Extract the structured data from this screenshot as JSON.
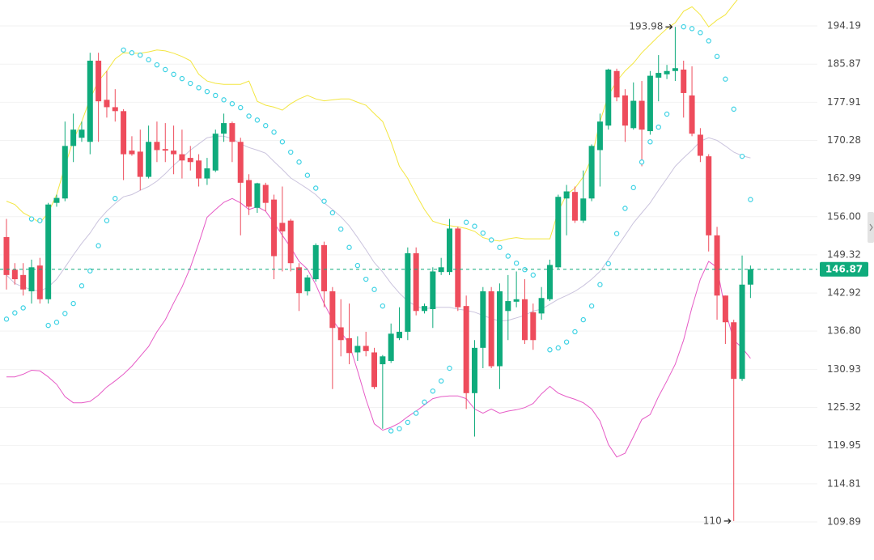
{
  "chart_data": {
    "type": "candlestick",
    "log_scale": true,
    "grid": true,
    "up_color": "#0fab7c",
    "down_color": "#ee4c5c",
    "ylim": [
      105.88,
      200.06
    ],
    "yticks": [
      109.89,
      114.81,
      119.95,
      125.32,
      130.93,
      {
        "value": 136.8,
        "label": "136.80"
      },
      142.92,
      149.32,
      {
        "value": 156,
        "label": "156.00"
      },
      162.99,
      170.28,
      177.91,
      185.87,
      194.19
    ],
    "open": [
      152.4,
      146.8,
      145.9,
      143.2,
      147.5,
      141.9,
      158.5,
      159.3,
      169.2,
      170.8,
      170.0,
      186.6,
      178.4,
      176.9,
      176.1,
      168.3,
      168.1,
      163.3,
      170.0,
      168.6,
      168.3,
      167.6,
      166.9,
      166.4,
      163.0,
      164.5,
      171.6,
      173.7,
      170.0,
      162.7,
      157.6,
      161.8,
      159.1,
      154.9,
      155.3,
      147.2,
      143.2,
      145.2,
      151.0,
      143.2,
      137.4,
      135.7,
      133.5,
      134.5,
      133.5,
      131.7,
      132.2,
      135.7,
      136.7,
      149.6,
      140.0,
      140.3,
      146.4,
      146.4,
      153.9,
      140.8,
      127.4,
      134.2,
      143.2,
      131.4,
      140.0,
      141.5,
      141.9,
      139.8,
      139.6,
      141.9,
      147.2,
      159.3,
      160.5,
      155.3,
      159.3,
      168.4,
      173.2,
      184.4,
      179.3,
      172.7,
      178.2,
      172.1,
      183.0,
      183.7,
      184.4,
      184.7,
      179.3,
      171.4,
      167.2,
      152.7,
      142.5,
      138.2,
      129.5,
      144.3
    ],
    "high": [
      155.6,
      147.9,
      147.9,
      148.5,
      148.8,
      158.5,
      160.0,
      174.0,
      175.6,
      174.0,
      188.3,
      188.3,
      184.4,
      180.6,
      176.5,
      171.1,
      172.4,
      173.2,
      174.0,
      173.7,
      173.2,
      172.4,
      169.2,
      167.6,
      166.9,
      172.4,
      175.6,
      174.0,
      170.8,
      163.8,
      162.2,
      162.2,
      160.0,
      161.5,
      155.6,
      147.9,
      145.9,
      151.3,
      151.6,
      143.9,
      141.9,
      141.2,
      136.0,
      136.7,
      134.2,
      133.1,
      138.0,
      140.6,
      150.6,
      150.6,
      141.2,
      147.2,
      148.8,
      155.6,
      154.2,
      142.5,
      135.4,
      143.9,
      143.9,
      144.5,
      145.9,
      146.5,
      145.2,
      141.2,
      143.9,
      148.5,
      160.0,
      161.8,
      161.5,
      164.5,
      169.5,
      175.6,
      184.9,
      184.9,
      180.6,
      182.0,
      182.3,
      184.4,
      187.8,
      185.7,
      193.98,
      186.6,
      185.4,
      172.7,
      167.6,
      154.2,
      142.5,
      138.6,
      149.2,
      147.5
    ],
    "low": [
      143.5,
      144.3,
      142.5,
      141.2,
      141.2,
      141.2,
      157.8,
      158.8,
      166.1,
      170.0,
      167.6,
      170.0,
      174.8,
      174.0,
      162.7,
      167.3,
      160.8,
      163.0,
      166.1,
      166.1,
      163.8,
      163.0,
      164.5,
      161.5,
      161.8,
      164.2,
      170.0,
      166.1,
      152.7,
      156.3,
      156.7,
      157.0,
      145.2,
      146.5,
      146.5,
      140.0,
      142.5,
      144.8,
      140.6,
      128.0,
      132.9,
      131.7,
      132.2,
      132.9,
      128.0,
      122.3,
      131.9,
      135.4,
      135.4,
      139.3,
      139.6,
      137.3,
      145.9,
      145.9,
      140.0,
      125.1,
      121.2,
      131.1,
      131.1,
      128.0,
      135.4,
      140.6,
      134.8,
      133.9,
      138.6,
      141.6,
      146.9,
      152.7,
      154.9,
      154.9,
      158.8,
      161.5,
      172.4,
      178.1,
      170.0,
      172.4,
      165.3,
      171.4,
      178.1,
      182.7,
      182.3,
      174.8,
      171.1,
      166.1,
      149.9,
      138.6,
      134.8,
      110,
      129.2,
      142.1
    ],
    "close": [
      145.9,
      145.2,
      143.5,
      147.2,
      141.9,
      158.2,
      159.4,
      169.2,
      172.4,
      172.4,
      186.6,
      178.1,
      176.9,
      176.1,
      167.6,
      167.6,
      163.3,
      170.0,
      168.4,
      168.3,
      167.6,
      166.4,
      166.1,
      163.0,
      164.9,
      171.6,
      173.7,
      170.0,
      162.2,
      157.8,
      162.1,
      158.5,
      149.1,
      153.4,
      147.9,
      142.9,
      145.5,
      151.0,
      143.2,
      137.3,
      135.4,
      133.4,
      134.5,
      133.7,
      128.3,
      132.9,
      136.4,
      136.7,
      149.6,
      140.0,
      140.8,
      146.5,
      147.2,
      153.9,
      140.6,
      127.4,
      134.2,
      143.2,
      131.4,
      143.2,
      141.6,
      141.9,
      135.4,
      135.4,
      142.1,
      147.6,
      159.6,
      160.6,
      155.3,
      159.3,
      169.2,
      174.0,
      184.7,
      178.9,
      173.2,
      178.2,
      172.4,
      183.4,
      184.0,
      184.4,
      185.0,
      179.8,
      171.6,
      167.3,
      152.7,
      142.5,
      138.2,
      129.5,
      144.3,
      146.87
    ],
    "upper_band": {
      "color": "#f3e640",
      "values": [
        158.8,
        158.2,
        156.7,
        155.9,
        154.9,
        156.7,
        160.0,
        165.3,
        170.4,
        174.0,
        178.6,
        182.3,
        184.4,
        187.0,
        188.3,
        188.2,
        188.2,
        188.5,
        188.9,
        188.7,
        188.2,
        187.5,
        186.6,
        183.7,
        182.3,
        181.8,
        181.6,
        181.6,
        181.6,
        182.3,
        178.1,
        177.3,
        176.9,
        176.3,
        177.6,
        178.6,
        179.3,
        178.6,
        178.2,
        178.4,
        178.6,
        178.6,
        177.9,
        177.3,
        175.6,
        174.0,
        170.0,
        165.3,
        163.0,
        160.0,
        157.3,
        155.2,
        154.7,
        154.4,
        154.2,
        153.9,
        153.4,
        152.3,
        151.9,
        151.7,
        152.1,
        152.3,
        152.1,
        152.1,
        152.1,
        152.1,
        157.0,
        160.0,
        161.2,
        163.3,
        166.9,
        174.0,
        179.3,
        182.3,
        184.4,
        186.1,
        188.3,
        190.1,
        191.9,
        193.6,
        194.9,
        197.5,
        198.5,
        196.7,
        194.0,
        195.5,
        196.7,
        199.1,
        201.5,
        202.9
      ]
    },
    "middle_band": {
      "color": "#cac3dd",
      "values": [
        145.9,
        144.5,
        143.9,
        143.5,
        143.2,
        143.9,
        145.2,
        147.2,
        149.3,
        151.3,
        153.1,
        155.3,
        157.0,
        158.4,
        159.6,
        160.0,
        160.8,
        161.5,
        162.5,
        163.9,
        165.5,
        166.9,
        168.4,
        169.6,
        170.8,
        171.1,
        171.1,
        170.6,
        169.6,
        168.9,
        168.4,
        167.8,
        166.2,
        164.7,
        163.1,
        162.1,
        161.1,
        160.0,
        158.5,
        157.3,
        156.0,
        154.4,
        152.3,
        150.2,
        148.0,
        146.4,
        144.5,
        142.9,
        141.6,
        140.8,
        140.3,
        140.6,
        140.6,
        140.6,
        140.3,
        140.1,
        139.8,
        139.3,
        138.8,
        138.4,
        138.5,
        138.9,
        139.3,
        140.0,
        140.3,
        141.1,
        141.9,
        142.5,
        143.2,
        144.1,
        145.2,
        146.5,
        148.5,
        150.6,
        152.7,
        154.9,
        156.7,
        158.5,
        160.8,
        163.0,
        165.3,
        166.9,
        168.4,
        170.1,
        170.8,
        170.3,
        169.2,
        168.0,
        167.3,
        166.9
      ]
    },
    "lower_band": {
      "color": "#e65bc6",
      "values": [
        129.8,
        129.8,
        130.2,
        130.8,
        130.7,
        129.8,
        128.7,
        126.9,
        126.0,
        126.0,
        126.2,
        127.1,
        128.3,
        129.2,
        130.2,
        131.4,
        132.9,
        134.4,
        136.7,
        138.6,
        141.3,
        143.9,
        147.2,
        151.3,
        155.9,
        157.3,
        158.6,
        159.3,
        158.5,
        157.3,
        157.8,
        157.0,
        154.9,
        152.7,
        150.6,
        148.2,
        146.9,
        144.3,
        141.2,
        138.6,
        136.7,
        134.8,
        130.7,
        126.5,
        123.0,
        122.1,
        122.5,
        123.1,
        124.0,
        124.8,
        125.7,
        126.6,
        126.9,
        127.0,
        127.0,
        126.6,
        125.1,
        124.5,
        125.1,
        124.5,
        124.8,
        125.0,
        125.3,
        125.9,
        127.3,
        128.4,
        127.4,
        126.9,
        126.5,
        126.0,
        125.1,
        123.4,
        120.1,
        118.4,
        118.9,
        121.2,
        123.6,
        124.3,
        126.9,
        129.2,
        131.7,
        135.4,
        140.6,
        145.2,
        148.2,
        147.2,
        140.0,
        135.4,
        134.2,
        132.6
      ]
    },
    "sar": {
      "color": "#3ed2e4",
      "values": [
        138.7,
        139.7,
        140.5,
        155.6,
        155.3,
        137.7,
        138.2,
        139.6,
        141.2,
        144.1,
        146.6,
        150.9,
        155.3,
        159.3,
        188.9,
        188.3,
        187.8,
        186.8,
        185.7,
        184.7,
        183.7,
        182.8,
        181.8,
        180.9,
        180.1,
        179.3,
        178.4,
        177.6,
        176.8,
        175.1,
        174.3,
        173.2,
        171.9,
        170.0,
        168.0,
        166.1,
        163.6,
        161.2,
        158.8,
        156.7,
        153.8,
        150.6,
        147.5,
        145.2,
        143.5,
        140.8,
        122.0,
        122.3,
        123.2,
        124.5,
        126.1,
        127.7,
        129.2,
        131.1,
        null,
        155.0,
        154.3,
        153.1,
        151.9,
        150.6,
        149.1,
        147.9,
        146.8,
        145.9,
        null,
        133.9,
        134.2,
        135.1,
        136.7,
        138.6,
        140.8,
        144.3,
        147.8,
        153.0,
        157.5,
        161.3,
        166.1,
        170.0,
        172.9,
        175.5,
        null,
        194.0,
        193.6,
        192.7,
        190.9,
        187.5,
        182.7,
        176.5,
        167.2,
        159.1
      ]
    },
    "last_price": 146.87,
    "max_label": "193.98",
    "min_label": "110"
  }
}
